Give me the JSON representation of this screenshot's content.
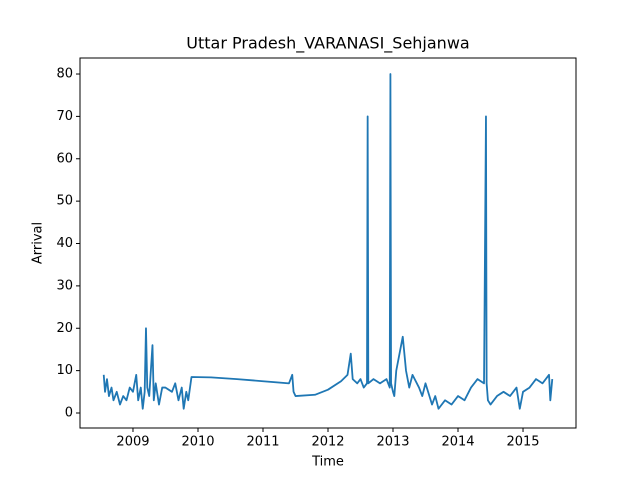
{
  "chart_data": {
    "type": "line",
    "title": "Uttar Pradesh_VARANASI_Sehjanwa",
    "x_label": "Time",
    "y_label": "Arrival",
    "color": "#1f77b4",
    "x": [
      2008.55,
      2008.57,
      2008.6,
      2008.63,
      2008.67,
      2008.7,
      2008.75,
      2008.8,
      2008.85,
      2008.9,
      2008.95,
      2009.0,
      2009.05,
      2009.08,
      2009.12,
      2009.15,
      2009.18,
      2009.2,
      2009.22,
      2009.25,
      2009.3,
      2009.32,
      2009.35,
      2009.4,
      2009.45,
      2009.5,
      2009.6,
      2009.65,
      2009.7,
      2009.75,
      2009.78,
      2009.82,
      2009.85,
      2009.9,
      2010.2,
      2010.6,
      2011.0,
      2011.4,
      2011.45,
      2011.47,
      2011.5,
      2011.8,
      2012.0,
      2012.2,
      2012.3,
      2012.35,
      2012.38,
      2012.45,
      2012.5,
      2012.55,
      2012.6,
      2012.61,
      2012.62,
      2012.7,
      2012.8,
      2012.9,
      2012.95,
      2012.96,
      2012.97,
      2013.0,
      2013.02,
      2013.05,
      2013.1,
      2013.15,
      2013.2,
      2013.25,
      2013.3,
      2013.4,
      2013.45,
      2013.5,
      2013.6,
      2013.65,
      2013.7,
      2013.8,
      2013.9,
      2014.0,
      2014.1,
      2014.2,
      2014.3,
      2014.4,
      2014.43,
      2014.44,
      2014.46,
      2014.5,
      2014.6,
      2014.7,
      2014.8,
      2014.9,
      2014.95,
      2015.0,
      2015.1,
      2015.2,
      2015.3,
      2015.4,
      2015.42,
      2015.45
    ],
    "values": [
      9,
      5,
      8,
      4,
      6,
      3,
      5,
      2,
      4,
      3,
      6,
      5,
      9,
      3,
      6,
      1,
      5,
      20,
      6,
      4,
      16,
      3,
      7,
      2,
      6,
      6,
      5,
      7,
      3,
      6,
      1,
      5,
      3,
      8.5,
      8.4,
      8,
      7.5,
      7,
      9,
      5,
      4,
      4.3,
      5.5,
      7.5,
      9,
      14,
      8,
      7,
      8,
      6,
      7,
      70,
      7,
      8,
      7,
      8,
      6,
      80,
      7,
      5,
      4,
      10,
      14,
      18,
      10,
      6,
      9,
      6,
      4,
      7,
      2,
      4,
      1,
      3,
      2,
      4,
      3,
      6,
      8,
      7,
      70,
      7,
      3,
      2,
      4,
      5,
      4,
      6,
      1,
      5,
      6,
      8,
      7,
      9,
      3,
      8
    ],
    "xlim": [
      2008.185,
      2015.815
    ],
    "xticks": [
      2009,
      2010,
      2011,
      2012,
      2013,
      2014,
      2015
    ],
    "ylim": [
      -3.54,
      83.78
    ],
    "yticks": [
      0,
      10,
      20,
      30,
      40,
      50,
      60,
      70,
      80
    ]
  }
}
